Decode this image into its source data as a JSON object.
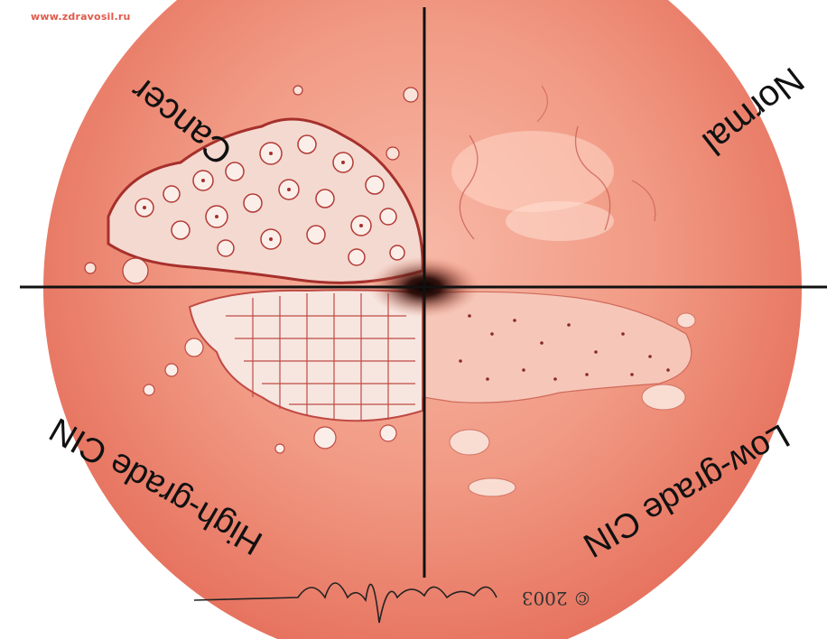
{
  "watermark": "www.zdravosil.ru",
  "quadrants": {
    "top_left": "Cancer",
    "top_right": "Normal",
    "bottom_left": "High-grade CIN",
    "bottom_right": "Low-grade CIN"
  },
  "copyright": "© 2003",
  "signature": "Emily Shaw",
  "colors": {
    "tissue": "#f08c78",
    "tissue_light": "#f7b4a2",
    "lesion": "#f5ddd6",
    "vessel": "#b03a36",
    "axes": "#111111"
  }
}
